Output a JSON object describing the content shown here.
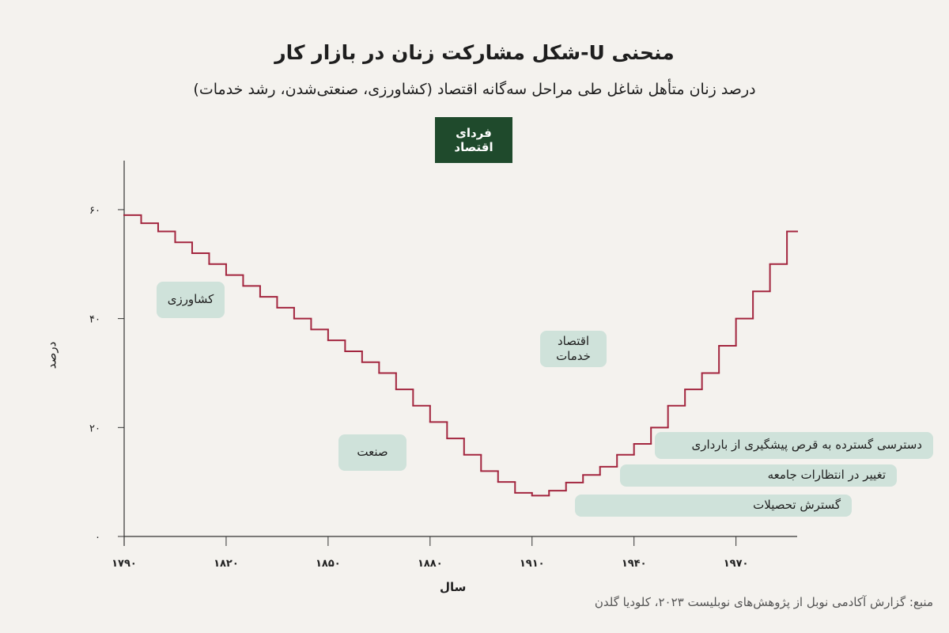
{
  "chart_data": {
    "type": "line",
    "step": true,
    "title": "منحنی U-شکل مشارکت زنان در بازار کار",
    "subtitle": "درصد زنان متأهل شاغل طی مراحل سه‌گانه اقتصاد (کشاورزی، صنعتی‌شدن، رشد خدمات)",
    "logo": "فردای اقتصاد",
    "xlabel": "سال",
    "ylabel": "درصد",
    "color": "#a3263f",
    "x": [
      1790,
      1795,
      1800,
      1805,
      1810,
      1815,
      1820,
      1825,
      1830,
      1835,
      1840,
      1845,
      1850,
      1855,
      1860,
      1865,
      1870,
      1875,
      1880,
      1885,
      1890,
      1895,
      1900,
      1905,
      1910,
      1915,
      1920,
      1925,
      1930,
      1935,
      1940,
      1945,
      1950,
      1955,
      1960,
      1965,
      1970,
      1975,
      1980,
      1985
    ],
    "values": [
      59,
      57.5,
      56,
      54,
      52,
      50,
      48,
      46,
      44,
      42,
      40,
      38,
      36,
      34,
      32,
      30,
      27,
      24,
      21,
      18,
      15,
      12,
      10,
      8,
      7.5,
      8.4,
      9.9,
      11.3,
      12.8,
      15,
      17,
      20,
      24,
      27,
      30,
      35,
      40,
      45,
      50,
      56
    ],
    "xlim": [
      1790,
      1988
    ],
    "ylim": [
      0,
      69
    ],
    "xticks": [
      {
        "value": 1790,
        "label": "۱۷۹۰"
      },
      {
        "value": 1820,
        "label": "۱۸۲۰"
      },
      {
        "value": 1850,
        "label": "۱۸۵۰"
      },
      {
        "value": 1880,
        "label": "۱۸۸۰"
      },
      {
        "value": 1910,
        "label": "۱۹۱۰"
      },
      {
        "value": 1940,
        "label": "۱۹۴۰"
      },
      {
        "value": 1970,
        "label": "۱۹۷۰"
      }
    ],
    "yticks": [
      {
        "value": 0,
        "label": "۰"
      },
      {
        "value": 20,
        "label": "۲۰"
      },
      {
        "value": 40,
        "label": "۴۰"
      },
      {
        "value": 60,
        "label": "۶۰"
      }
    ],
    "annotations": [
      "کشاورزی",
      "صنعت",
      "اقتصاد خدمات",
      "دسترسی گسترده به قرص پیشگیری از بارداری",
      "تغییر در انتظارات جامعه",
      "گسترش تحصیلات"
    ],
    "source": "منبع: گزارش آکادمی نوبل از پژوهش‌های نوبلیست ۲۰۲۳، کلودیا گلدن"
  }
}
